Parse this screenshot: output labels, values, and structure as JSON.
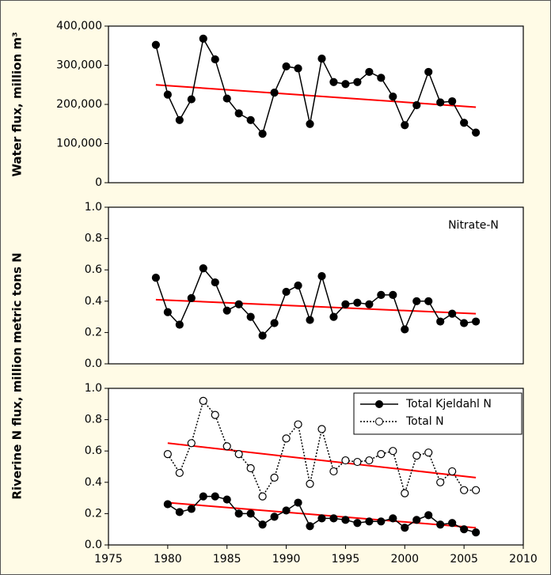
{
  "chart_data": [
    {
      "type": "line",
      "ylabel": "Water flux, million m³",
      "x": [
        1979,
        1980,
        1981,
        1982,
        1983,
        1984,
        1985,
        1986,
        1987,
        1988,
        1989,
        1990,
        1991,
        1992,
        1993,
        1994,
        1995,
        1996,
        1997,
        1998,
        1999,
        2000,
        2001,
        2002,
        2003,
        2004,
        2005,
        2006
      ],
      "values": [
        352000,
        225000,
        160000,
        213000,
        368000,
        315000,
        215000,
        177000,
        160000,
        125000,
        230000,
        297000,
        292000,
        150000,
        317000,
        257000,
        252000,
        257000,
        283000,
        268000,
        220000,
        147000,
        198000,
        283000,
        205000,
        208000,
        153000,
        128000
      ],
      "color": "#000000",
      "marker": "filled",
      "linestyle": "solid",
      "trend": {
        "x": [
          1979,
          2006
        ],
        "values": [
          250000,
          193000
        ],
        "color": "#ff0000"
      },
      "xlim": [
        1975,
        2010
      ],
      "ylim": [
        0,
        400000
      ],
      "yticks": [
        0,
        {
          "value": 100000,
          "label": "100,000"
        },
        {
          "value": 200000,
          "label": "200,000"
        },
        {
          "value": 300000,
          "label": "300,000"
        },
        {
          "value": 400000,
          "label": "400,000"
        }
      ]
    },
    {
      "type": "line",
      "ylabel": "Riverine N flux, million metric tons N",
      "annotation": "Nitrate-N",
      "x": [
        1979,
        1980,
        1981,
        1982,
        1983,
        1984,
        1985,
        1986,
        1987,
        1988,
        1989,
        1990,
        1991,
        1992,
        1993,
        1994,
        1995,
        1996,
        1997,
        1998,
        1999,
        2000,
        2001,
        2002,
        2003,
        2004,
        2005,
        2006
      ],
      "values": [
        0.55,
        0.33,
        0.25,
        0.42,
        0.61,
        0.52,
        0.34,
        0.38,
        0.3,
        0.18,
        0.26,
        0.46,
        0.5,
        0.28,
        0.56,
        0.3,
        0.38,
        0.39,
        0.38,
        0.44,
        0.44,
        0.22,
        0.4,
        0.4,
        0.27,
        0.32,
        0.26,
        0.27
      ],
      "color": "#000000",
      "marker": "filled",
      "linestyle": "solid",
      "trend": {
        "x": [
          1979,
          2006
        ],
        "values": [
          0.41,
          0.32
        ],
        "color": "#ff0000"
      },
      "xlim": [
        1975,
        2010
      ],
      "ylim": [
        0,
        1
      ],
      "yticks": [
        {
          "value": 0,
          "label": "0.0"
        },
        0.2,
        0.4,
        0.6,
        0.8,
        {
          "value": 1,
          "label": "1.0"
        }
      ]
    },
    {
      "type": "line",
      "legend": "upper right",
      "x": [
        1980,
        1981,
        1982,
        1983,
        1984,
        1985,
        1986,
        1987,
        1988,
        1989,
        1990,
        1991,
        1992,
        1993,
        1994,
        1995,
        1996,
        1997,
        1998,
        1999,
        2000,
        2001,
        2002,
        2003,
        2004,
        2005,
        2006
      ],
      "series": [
        {
          "name": "Total Kjeldahl N",
          "color": "#000000",
          "marker": "filled",
          "linestyle": "solid",
          "values": [
            0.26,
            0.21,
            0.23,
            0.31,
            0.31,
            0.29,
            0.2,
            0.2,
            0.13,
            0.18,
            0.22,
            0.27,
            0.12,
            0.17,
            0.17,
            0.16,
            0.14,
            0.15,
            0.15,
            0.17,
            0.11,
            0.16,
            0.19,
            0.13,
            0.14,
            0.1,
            0.08
          ],
          "trend": {
            "x": [
              1980,
              2006
            ],
            "values": [
              0.27,
              0.11
            ],
            "color": "#ff0000"
          }
        },
        {
          "name": "Total N",
          "color": "#000000",
          "marker": "open",
          "linestyle": "dotted",
          "values": [
            0.58,
            0.46,
            0.65,
            0.92,
            0.83,
            0.63,
            0.58,
            0.49,
            0.31,
            0.43,
            0.68,
            0.77,
            0.39,
            0.74,
            0.47,
            0.54,
            0.53,
            0.54,
            0.58,
            0.6,
            0.33,
            0.57,
            0.59,
            0.4,
            0.47,
            0.35,
            0.35
          ],
          "trend": {
            "x": [
              1980,
              2006
            ],
            "values": [
              0.65,
              0.43
            ],
            "color": "#ff0000"
          }
        }
      ],
      "xlim": [
        1975,
        2010
      ],
      "xticks": [
        1975,
        1980,
        1985,
        1990,
        1995,
        2000,
        2005,
        2010
      ],
      "ylim": [
        0,
        1
      ],
      "yticks": [
        {
          "value": 0,
          "label": "0.0"
        },
        0.2,
        0.4,
        0.6,
        0.8,
        {
          "value": 1,
          "label": "1.0"
        }
      ]
    }
  ]
}
